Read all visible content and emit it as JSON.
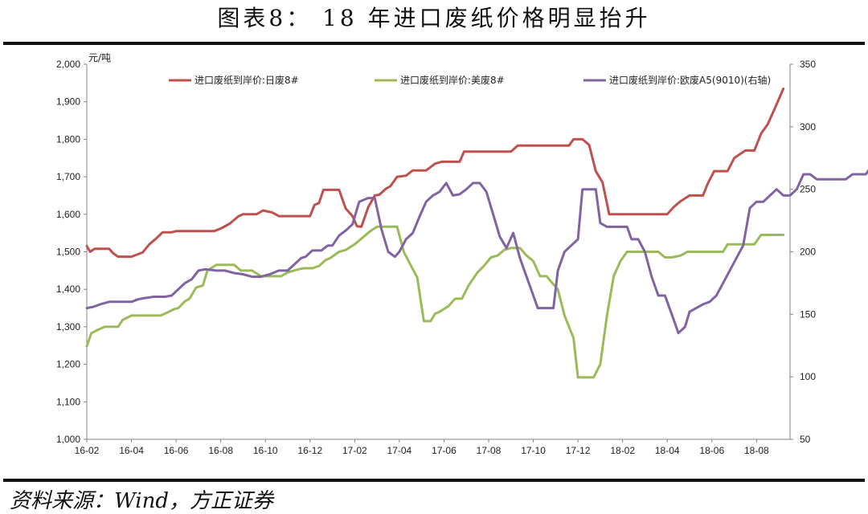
{
  "figure": {
    "title": "图表8： 18 年进口废纸价格明显抬升",
    "source": "资料来源：Wind，方正证券"
  },
  "chart_data": {
    "type": "line",
    "x_labels": [
      "16-02",
      "16-04",
      "16-06",
      "16-08",
      "16-10",
      "16-12",
      "17-02",
      "17-04",
      "17-06",
      "17-08",
      "17-10",
      "17-12",
      "18-02",
      "18-04",
      "18-06",
      "18-08"
    ],
    "left_axis": {
      "unit": "元/吨",
      "ylim": [
        1000,
        2000
      ],
      "ticks": [
        "1,000",
        "1,100",
        "1,200",
        "1,300",
        "1,400",
        "1,500",
        "1,600",
        "1,700",
        "1,800",
        "1,900",
        "2,000"
      ]
    },
    "right_axis": {
      "ylim": [
        50,
        350
      ],
      "ticks": [
        "50",
        "100",
        "150",
        "200",
        "250",
        "300",
        "350"
      ]
    },
    "legend_position": "top",
    "grid": false,
    "series": [
      {
        "name": "进口废纸到岸价:日废8#",
        "axis": "left",
        "color": "#c0504d",
        "points": [
          [
            0,
            1515
          ],
          [
            0.15,
            1500
          ],
          [
            0.35,
            1508
          ],
          [
            1,
            1508
          ],
          [
            1.2,
            1495
          ],
          [
            1.4,
            1487
          ],
          [
            2.0,
            1487
          ],
          [
            2.5,
            1498
          ],
          [
            2.8,
            1520
          ],
          [
            3.1,
            1535
          ],
          [
            3.4,
            1552
          ],
          [
            3.8,
            1552
          ],
          [
            4.0,
            1555
          ],
          [
            5.7,
            1555
          ],
          [
            6.0,
            1562
          ],
          [
            6.4,
            1575
          ],
          [
            6.8,
            1595
          ],
          [
            7.0,
            1600
          ],
          [
            7.6,
            1600
          ],
          [
            7.9,
            1610
          ],
          [
            8.3,
            1605
          ],
          [
            8.6,
            1595
          ],
          [
            9.2,
            1595
          ],
          [
            10.0,
            1595
          ],
          [
            10.2,
            1625
          ],
          [
            10.4,
            1630
          ],
          [
            10.6,
            1665
          ],
          [
            11.3,
            1665
          ],
          [
            11.6,
            1615
          ],
          [
            11.9,
            1595
          ],
          [
            12.1,
            1568
          ],
          [
            12.3,
            1567
          ],
          [
            12.6,
            1618
          ],
          [
            12.9,
            1650
          ],
          [
            13.1,
            1652
          ],
          [
            13.4,
            1668
          ],
          [
            13.6,
            1675
          ],
          [
            13.9,
            1700
          ],
          [
            14.3,
            1703
          ],
          [
            14.6,
            1717
          ],
          [
            15.2,
            1717
          ],
          [
            15.6,
            1735
          ],
          [
            15.9,
            1740
          ],
          [
            16.7,
            1740
          ],
          [
            16.9,
            1767
          ],
          [
            18.1,
            1767
          ],
          [
            19.0,
            1767
          ],
          [
            19.3,
            1783
          ],
          [
            21.6,
            1783
          ],
          [
            21.8,
            1800
          ],
          [
            22.2,
            1800
          ],
          [
            22.5,
            1785
          ],
          [
            22.8,
            1715
          ],
          [
            23.1,
            1685
          ],
          [
            23.4,
            1600
          ],
          [
            24.0,
            1600
          ],
          [
            24.5,
            1600
          ],
          [
            25.0,
            1600
          ],
          [
            25.5,
            1600
          ],
          [
            26.0,
            1600
          ],
          [
            26.3,
            1620
          ],
          [
            26.6,
            1635
          ],
          [
            27.0,
            1650
          ],
          [
            27.3,
            1650
          ],
          [
            27.6,
            1650
          ],
          [
            27.8,
            1680
          ],
          [
            28.1,
            1715
          ],
          [
            28.7,
            1715
          ],
          [
            29.0,
            1750
          ],
          [
            29.5,
            1770
          ],
          [
            29.9,
            1770
          ],
          [
            30.2,
            1815
          ],
          [
            30.5,
            1840
          ],
          [
            30.8,
            1880
          ],
          [
            31.2,
            1935
          ]
        ]
      },
      {
        "name": "进口废纸到岸价:美废8#",
        "axis": "left",
        "color": "#9bbb59",
        "points": [
          [
            0,
            1248
          ],
          [
            0.2,
            1283
          ],
          [
            0.5,
            1292
          ],
          [
            0.8,
            1300
          ],
          [
            1.4,
            1300
          ],
          [
            1.6,
            1318
          ],
          [
            2.0,
            1330
          ],
          [
            2.8,
            1330
          ],
          [
            3.3,
            1330
          ],
          [
            3.6,
            1338
          ],
          [
            3.9,
            1347
          ],
          [
            4.1,
            1350
          ],
          [
            4.4,
            1368
          ],
          [
            4.6,
            1375
          ],
          [
            4.9,
            1405
          ],
          [
            5.2,
            1410
          ],
          [
            5.4,
            1450
          ],
          [
            5.8,
            1465
          ],
          [
            6.6,
            1465
          ],
          [
            6.9,
            1450
          ],
          [
            7.4,
            1450
          ],
          [
            7.8,
            1435
          ],
          [
            8.7,
            1435
          ],
          [
            9.0,
            1445
          ],
          [
            9.4,
            1452
          ],
          [
            9.7,
            1456
          ],
          [
            10.1,
            1456
          ],
          [
            10.4,
            1462
          ],
          [
            10.7,
            1478
          ],
          [
            10.9,
            1483
          ],
          [
            11.3,
            1500
          ],
          [
            11.6,
            1505
          ],
          [
            12.0,
            1520
          ],
          [
            12.4,
            1540
          ],
          [
            12.7,
            1555
          ],
          [
            13.0,
            1567
          ],
          [
            13.9,
            1567
          ],
          [
            14.2,
            1500
          ],
          [
            14.5,
            1465
          ],
          [
            14.8,
            1432
          ],
          [
            15.1,
            1315
          ],
          [
            15.4,
            1315
          ],
          [
            15.6,
            1335
          ],
          [
            15.8,
            1340
          ],
          [
            16.2,
            1355
          ],
          [
            16.5,
            1375
          ],
          [
            16.8,
            1375
          ],
          [
            17.1,
            1410
          ],
          [
            17.5,
            1445
          ],
          [
            17.8,
            1463
          ],
          [
            18.1,
            1485
          ],
          [
            18.4,
            1490
          ],
          [
            18.7,
            1505
          ],
          [
            19.0,
            1510
          ],
          [
            19.4,
            1510
          ],
          [
            19.7,
            1490
          ],
          [
            20.0,
            1475
          ],
          [
            20.3,
            1435
          ],
          [
            20.6,
            1435
          ],
          [
            20.8,
            1420
          ],
          [
            21.1,
            1400
          ],
          [
            21.4,
            1330
          ],
          [
            21.8,
            1270
          ],
          [
            22.0,
            1165
          ],
          [
            22.4,
            1165
          ],
          [
            22.7,
            1165
          ],
          [
            23.0,
            1200
          ],
          [
            23.3,
            1330
          ],
          [
            23.6,
            1435
          ],
          [
            23.9,
            1475
          ],
          [
            24.2,
            1500
          ],
          [
            24.6,
            1500
          ],
          [
            25.0,
            1500
          ],
          [
            25.6,
            1500
          ],
          [
            25.9,
            1485
          ],
          [
            26.2,
            1485
          ],
          [
            26.6,
            1490
          ],
          [
            26.9,
            1500
          ],
          [
            28.5,
            1500
          ],
          [
            28.7,
            1520
          ],
          [
            29.9,
            1520
          ],
          [
            30.2,
            1545
          ],
          [
            30.5,
            1545
          ],
          [
            30.8,
            1545
          ],
          [
            31.0,
            1545
          ],
          [
            31.2,
            1545
          ],
          [
            31.0,
            1545
          ],
          [
            31.2,
            1545
          ]
        ]
      },
      {
        "name": "进口废纸到岸价:欧废A5(9010)(右轴)",
        "axis": "right",
        "color": "#8064a2",
        "points": [
          [
            0,
            155
          ],
          [
            0.3,
            156
          ],
          [
            0.6,
            158
          ],
          [
            1.0,
            160
          ],
          [
            2.0,
            160
          ],
          [
            2.3,
            162
          ],
          [
            2.6,
            163
          ],
          [
            3.0,
            164
          ],
          [
            3.5,
            164
          ],
          [
            3.8,
            165
          ],
          [
            4.1,
            170
          ],
          [
            4.4,
            175
          ],
          [
            4.7,
            178
          ],
          [
            5.0,
            185
          ],
          [
            5.3,
            186
          ],
          [
            5.8,
            185
          ],
          [
            6.2,
            185
          ],
          [
            6.6,
            183
          ],
          [
            7.0,
            182
          ],
          [
            7.4,
            180
          ],
          [
            7.8,
            180
          ],
          [
            8.2,
            182
          ],
          [
            8.6,
            185
          ],
          [
            9.0,
            185
          ],
          [
            9.3,
            190
          ],
          [
            9.6,
            195
          ],
          [
            9.8,
            196
          ],
          [
            10.1,
            201
          ],
          [
            10.5,
            201
          ],
          [
            10.8,
            205
          ],
          [
            11.0,
            205
          ],
          [
            11.3,
            213
          ],
          [
            11.6,
            217
          ],
          [
            11.9,
            222
          ],
          [
            12.2,
            240
          ],
          [
            12.6,
            243
          ],
          [
            12.9,
            243
          ],
          [
            13.2,
            218
          ],
          [
            13.5,
            200
          ],
          [
            13.8,
            196
          ],
          [
            14.0,
            200
          ],
          [
            14.3,
            210
          ],
          [
            14.6,
            215
          ],
          [
            14.9,
            228
          ],
          [
            15.2,
            240
          ],
          [
            15.5,
            245
          ],
          [
            15.8,
            248
          ],
          [
            16.1,
            255
          ],
          [
            16.4,
            245
          ],
          [
            16.7,
            246
          ],
          [
            17.0,
            250
          ],
          [
            17.3,
            255
          ],
          [
            17.6,
            255
          ],
          [
            17.9,
            248
          ],
          [
            18.2,
            230
          ],
          [
            18.5,
            212
          ],
          [
            18.8,
            203
          ],
          [
            19.1,
            215
          ],
          [
            19.4,
            195
          ],
          [
            19.7,
            180
          ],
          [
            20.0,
            165
          ],
          [
            20.2,
            155
          ],
          [
            20.6,
            155
          ],
          [
            20.9,
            155
          ],
          [
            21.1,
            185
          ],
          [
            21.4,
            200
          ],
          [
            21.7,
            205
          ],
          [
            22.0,
            210
          ],
          [
            22.2,
            250
          ],
          [
            22.5,
            250
          ],
          [
            22.8,
            250
          ],
          [
            23.0,
            223
          ],
          [
            23.3,
            220
          ],
          [
            23.6,
            220
          ],
          [
            23.9,
            220
          ],
          [
            24.2,
            220
          ],
          [
            24.4,
            210
          ],
          [
            24.7,
            210
          ],
          [
            25.0,
            200
          ],
          [
            25.3,
            180
          ],
          [
            25.6,
            165
          ],
          [
            25.9,
            165
          ],
          [
            26.2,
            150
          ],
          [
            26.5,
            135
          ],
          [
            26.8,
            140
          ],
          [
            27.0,
            152
          ],
          [
            27.3,
            155
          ],
          [
            27.6,
            158
          ],
          [
            27.9,
            160
          ],
          [
            28.2,
            165
          ],
          [
            28.5,
            175
          ],
          [
            28.8,
            185
          ],
          [
            29.1,
            195
          ],
          [
            29.4,
            205
          ],
          [
            29.7,
            235
          ],
          [
            30.0,
            240
          ],
          [
            30.3,
            240
          ],
          [
            30.6,
            245
          ],
          [
            30.9,
            250
          ],
          [
            31.2,
            245
          ],
          [
            31.5,
            245
          ],
          [
            31.8,
            250
          ],
          [
            32.1,
            262
          ],
          [
            32.4,
            262
          ],
          [
            32.7,
            258
          ],
          [
            33.0,
            258
          ],
          [
            33.4,
            258
          ],
          [
            33.7,
            258
          ],
          [
            34.0,
            258
          ],
          [
            34.3,
            262
          ],
          [
            34.6,
            262
          ],
          [
            34.9,
            262
          ],
          [
            35.2,
            270
          ],
          [
            35.5,
            270
          ]
        ]
      }
    ]
  }
}
